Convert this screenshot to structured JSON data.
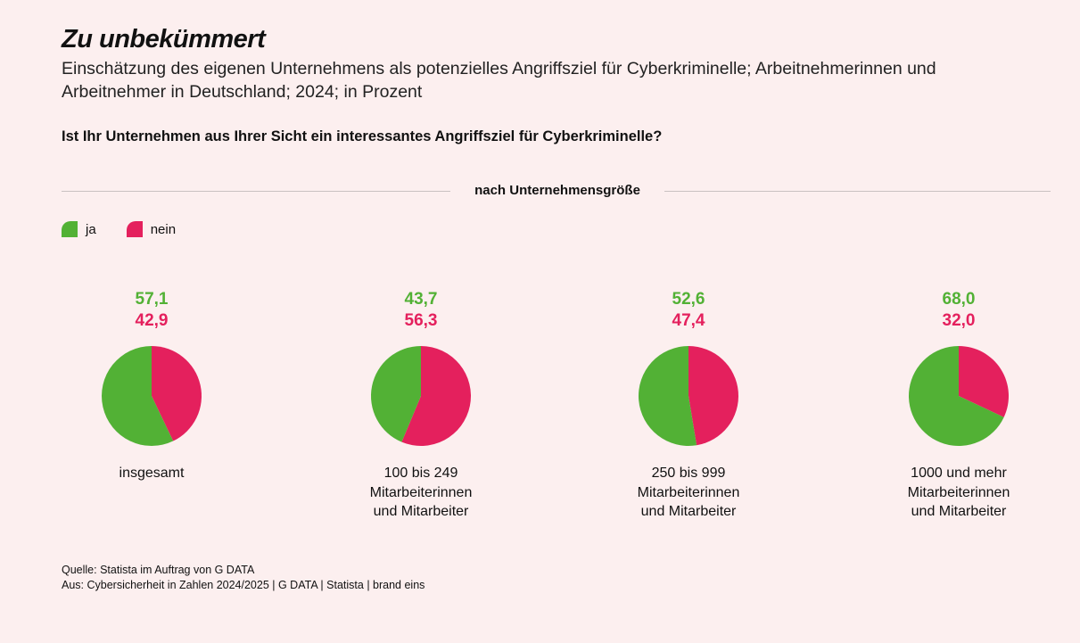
{
  "title": "Zu unbekümmert",
  "subtitle": "Einschätzung des eigenen Unternehmens als potenzielles Angriffsziel für Cyberkriminelle; Arbeitnehmerinnen und Arbeitnehmer in Deutschland; 2024; in Prozent",
  "question": "Ist Ihr Unternehmen aus Ihrer Sicht ein interessantes Angriffsziel für Cyberkriminelle?",
  "group_label": "nach Unternehmensgröße",
  "source": {
    "line1": "Quelle: Statista im Auftrag von G DATA",
    "line2": "Aus: Cybersicherheit in Zahlen 2024/2025 | G DATA | Statista | brand eins"
  },
  "colors": {
    "ja": "#52b135",
    "nein": "#e4205d",
    "background": "#fcefef"
  },
  "chart_data": {
    "type": "pie",
    "title": "Zu unbekümmert",
    "series_names": [
      "ja",
      "nein"
    ],
    "legend": {
      "position": "top-left",
      "items": [
        "ja",
        "nein"
      ]
    },
    "pies": [
      {
        "category": "insgesamt",
        "ja": 57.1,
        "nein": 42.9,
        "ja_label": "57,1",
        "nein_label": "42,9"
      },
      {
        "category": "100 bis 249\nMitarbeiterinnen\nund Mitarbeiter",
        "ja": 43.7,
        "nein": 56.3,
        "ja_label": "43,7",
        "nein_label": "56,3"
      },
      {
        "category": "250 bis 999\nMitarbeiterinnen\nund Mitarbeiter",
        "ja": 52.6,
        "nein": 47.4,
        "ja_label": "52,6",
        "nein_label": "47,4"
      },
      {
        "category": "1000 und mehr\nMitarbeiterinnen\nund Mitarbeiter",
        "ja": 68.0,
        "nein": 32.0,
        "ja_label": "68,0",
        "nein_label": "32,0"
      }
    ]
  }
}
